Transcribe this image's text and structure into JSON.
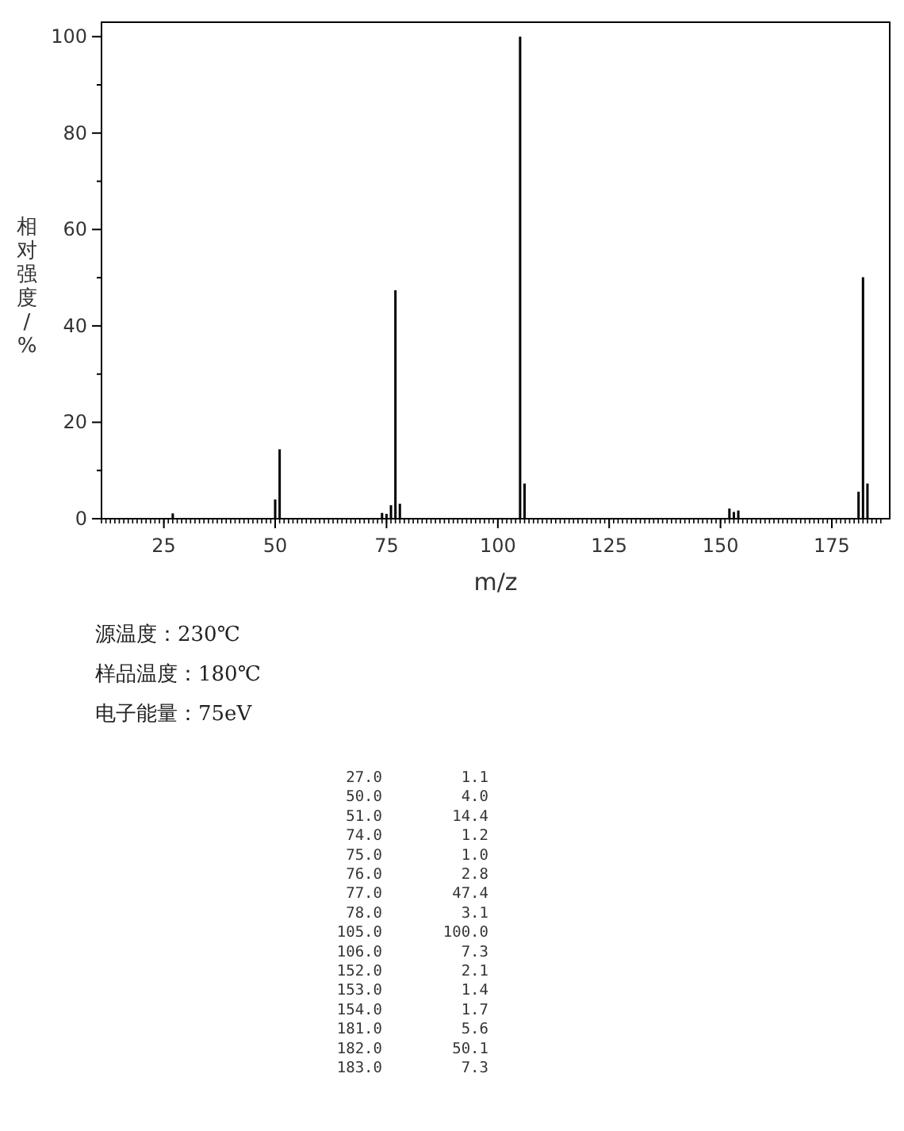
{
  "chart_data": {
    "type": "bar",
    "xlabel": "m/z",
    "ylabel": "相对强度/%",
    "x": [
      27,
      50,
      51,
      74,
      75,
      76,
      77,
      78,
      105,
      106,
      152,
      153,
      154,
      181,
      182,
      183
    ],
    "values": [
      1.1,
      4.0,
      14.4,
      1.2,
      1.0,
      2.8,
      47.4,
      3.1,
      100.0,
      7.3,
      2.1,
      1.4,
      1.7,
      5.6,
      50.1,
      7.3
    ],
    "color": "#000000",
    "xlim": [
      11,
      188
    ],
    "ylim": [
      0,
      103
    ],
    "xticks": [
      25,
      50,
      75,
      100,
      125,
      150,
      175
    ],
    "yticks": [
      0,
      20,
      40,
      60,
      80,
      100
    ],
    "annotations": [
      "源温度：230℃",
      "样品温度：180℃",
      "电子能量：75eV",
      "27.0",
      "1.1",
      "50.0",
      "4.0",
      "51.0",
      "14.4",
      "74.0",
      "1.2",
      "75.0",
      "1.0",
      "76.0",
      "2.8",
      "77.0",
      "47.4",
      "78.0",
      "3.1",
      "105.0",
      "100.0",
      "106.0",
      "7.3",
      "152.0",
      "2.1",
      "153.0",
      "1.4",
      "154.0",
      "1.7",
      "181.0",
      "5.6",
      "182.0",
      "50.1",
      "183.0",
      "7.3"
    ]
  }
}
